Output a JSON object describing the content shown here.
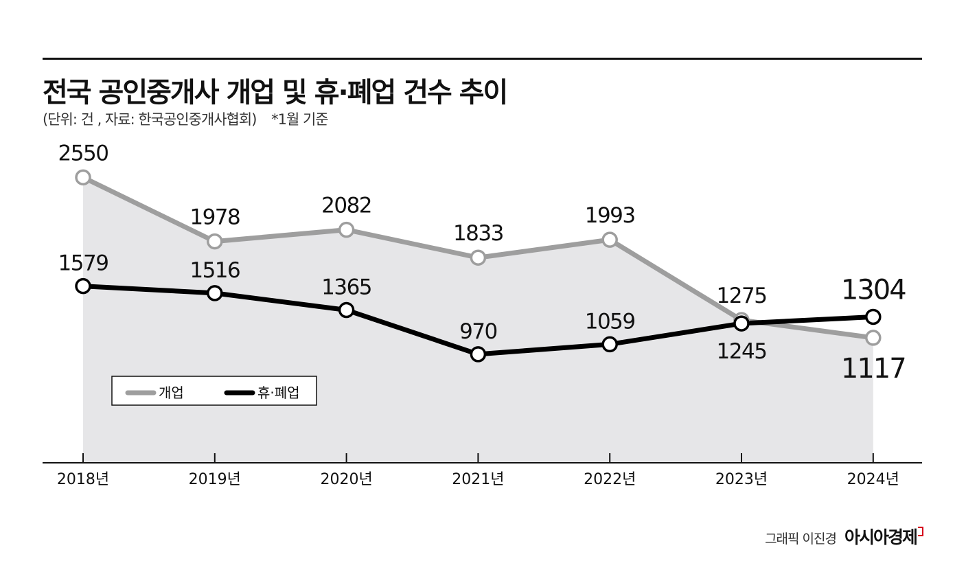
{
  "title": "전국 공인중개사 개업 및 휴·폐업 건수 추이",
  "subtitle": "(단위: 건 , 자료: 한국공인중개사협회)",
  "note": "*1월 기준",
  "credit": {
    "author": "그래픽 이진경",
    "brand": "아시아경제"
  },
  "colors": {
    "open": "#9e9e9e",
    "closed": "#000000",
    "area": "#e6e6e8"
  },
  "chart_data": {
    "type": "line",
    "title": "전국 공인중개사 개업 및 휴·폐업 건수 추이",
    "categories": [
      "2018년",
      "2019년",
      "2020년",
      "2021년",
      "2022년",
      "2023년",
      "2024년"
    ],
    "series": [
      {
        "name": "개업",
        "values": [
          2550,
          1978,
          2082,
          1833,
          1993,
          1275,
          1117
        ]
      },
      {
        "name": "휴·폐업",
        "values": [
          1579,
          1516,
          1365,
          970,
          1059,
          1245,
          1304
        ]
      }
    ],
    "ylim": [
      0,
      3000
    ],
    "legend": "inside-lower-left",
    "grid": false
  }
}
